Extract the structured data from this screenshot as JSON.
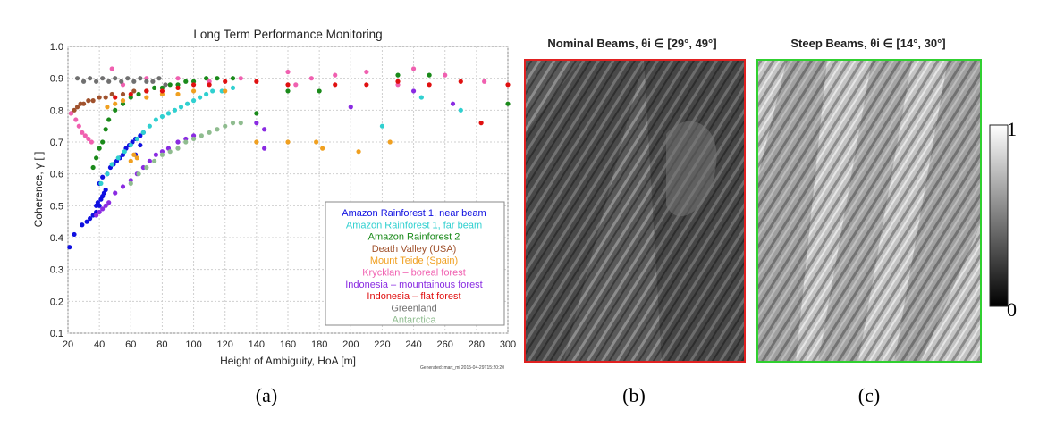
{
  "chart_data": [
    {
      "type": "scatter",
      "title": "Long Term Performance Monitoring",
      "xlabel": "Height of Ambiguity, HoA [m]",
      "ylabel": "Coherence, γ [ ]",
      "xlim": [
        20,
        300
      ],
      "ylim": [
        0.1,
        1.0
      ],
      "xticks": [
        20,
        40,
        60,
        80,
        100,
        120,
        140,
        160,
        180,
        200,
        220,
        240,
        260,
        280,
        300
      ],
      "yticks": [
        0.1,
        0.2,
        0.3,
        0.4,
        0.5,
        0.6,
        0.7,
        0.8,
        0.9,
        1.0
      ],
      "grid": true,
      "legend_position": "bottom-right",
      "footnote": "Generated: mart_mi 2015-04-29T15:20:20",
      "series": [
        {
          "name": "Amazon Rainforest 1, near beam",
          "color": "#1010e0",
          "points": [
            [
              21,
              0.37
            ],
            [
              24,
              0.41
            ],
            [
              29,
              0.44
            ],
            [
              32,
              0.45
            ],
            [
              34,
              0.46
            ],
            [
              36,
              0.47
            ],
            [
              38,
              0.48
            ],
            [
              38,
              0.5
            ],
            [
              39,
              0.51
            ],
            [
              40,
              0.5
            ],
            [
              41,
              0.52
            ],
            [
              42,
              0.53
            ],
            [
              43,
              0.54
            ],
            [
              44,
              0.55
            ],
            [
              40,
              0.57
            ],
            [
              42,
              0.59
            ],
            [
              45,
              0.6
            ],
            [
              47,
              0.62
            ],
            [
              49,
              0.63
            ],
            [
              51,
              0.64
            ],
            [
              53,
              0.65
            ],
            [
              55,
              0.66
            ],
            [
              57,
              0.68
            ],
            [
              59,
              0.69
            ],
            [
              61,
              0.7
            ],
            [
              63,
              0.71
            ],
            [
              66,
              0.72
            ],
            [
              68,
              0.73
            ],
            [
              63,
              0.66
            ],
            [
              66,
              0.69
            ]
          ]
        },
        {
          "name": "Amazon Rainforest 1, far beam",
          "color": "#30d0d0",
          "points": [
            [
              41,
              0.57
            ],
            [
              45,
              0.6
            ],
            [
              48,
              0.63
            ],
            [
              52,
              0.65
            ],
            [
              56,
              0.67
            ],
            [
              60,
              0.69
            ],
            [
              64,
              0.71
            ],
            [
              68,
              0.73
            ],
            [
              72,
              0.75
            ],
            [
              76,
              0.77
            ],
            [
              80,
              0.78
            ],
            [
              84,
              0.79
            ],
            [
              88,
              0.8
            ],
            [
              92,
              0.81
            ],
            [
              96,
              0.82
            ],
            [
              100,
              0.83
            ],
            [
              104,
              0.84
            ],
            [
              108,
              0.85
            ],
            [
              112,
              0.86
            ],
            [
              118,
              0.86
            ],
            [
              125,
              0.87
            ],
            [
              220,
              0.75
            ],
            [
              245,
              0.84
            ],
            [
              270,
              0.8
            ]
          ]
        },
        {
          "name": "Amazon Rainforest 2",
          "color": "#1a8a1a",
          "points": [
            [
              36,
              0.62
            ],
            [
              38,
              0.65
            ],
            [
              40,
              0.68
            ],
            [
              42,
              0.7
            ],
            [
              44,
              0.74
            ],
            [
              46,
              0.77
            ],
            [
              50,
              0.8
            ],
            [
              55,
              0.82
            ],
            [
              60,
              0.84
            ],
            [
              65,
              0.85
            ],
            [
              70,
              0.86
            ],
            [
              75,
              0.87
            ],
            [
              80,
              0.87
            ],
            [
              85,
              0.88
            ],
            [
              90,
              0.88
            ],
            [
              95,
              0.89
            ],
            [
              100,
              0.89
            ],
            [
              108,
              0.9
            ],
            [
              115,
              0.9
            ],
            [
              125,
              0.9
            ],
            [
              140,
              0.79
            ],
            [
              160,
              0.86
            ],
            [
              180,
              0.86
            ],
            [
              230,
              0.91
            ],
            [
              250,
              0.91
            ],
            [
              300,
              0.82
            ]
          ]
        },
        {
          "name": "Death Valley (USA)",
          "color": "#a0522d",
          "points": [
            [
              22,
              0.79
            ],
            [
              24,
              0.8
            ],
            [
              26,
              0.81
            ],
            [
              28,
              0.82
            ],
            [
              30,
              0.82
            ],
            [
              33,
              0.83
            ],
            [
              36,
              0.83
            ],
            [
              40,
              0.84
            ],
            [
              44,
              0.84
            ],
            [
              48,
              0.85
            ],
            [
              55,
              0.85
            ],
            [
              62,
              0.86
            ],
            [
              70,
              0.86
            ]
          ]
        },
        {
          "name": "Mount Teide (Spain)",
          "color": "#f0a020",
          "points": [
            [
              45,
              0.81
            ],
            [
              50,
              0.82
            ],
            [
              55,
              0.83
            ],
            [
              60,
              0.64
            ],
            [
              62,
              0.66
            ],
            [
              64,
              0.65
            ],
            [
              70,
              0.84
            ],
            [
              80,
              0.85
            ],
            [
              90,
              0.85
            ],
            [
              100,
              0.86
            ],
            [
              120,
              0.86
            ],
            [
              140,
              0.7
            ],
            [
              160,
              0.7
            ],
            [
              178,
              0.7
            ],
            [
              182,
              0.68
            ],
            [
              205,
              0.67
            ],
            [
              225,
              0.7
            ]
          ]
        },
        {
          "name": "Krycklan – boreal forest",
          "color": "#f060b0",
          "points": [
            [
              22,
              0.79
            ],
            [
              25,
              0.77
            ],
            [
              27,
              0.75
            ],
            [
              29,
              0.73
            ],
            [
              31,
              0.72
            ],
            [
              33,
              0.71
            ],
            [
              35,
              0.7
            ],
            [
              48,
              0.93
            ],
            [
              55,
              0.88
            ],
            [
              70,
              0.9
            ],
            [
              90,
              0.9
            ],
            [
              110,
              0.89
            ],
            [
              130,
              0.9
            ],
            [
              160,
              0.92
            ],
            [
              165,
              0.88
            ],
            [
              175,
              0.9
            ],
            [
              190,
              0.91
            ],
            [
              210,
              0.92
            ],
            [
              230,
              0.88
            ],
            [
              240,
              0.93
            ],
            [
              260,
              0.91
            ],
            [
              285,
              0.89
            ]
          ]
        },
        {
          "name": "Indonesia – mountainous forest",
          "color": "#8a2be2",
          "points": [
            [
              38,
              0.47
            ],
            [
              40,
              0.48
            ],
            [
              42,
              0.49
            ],
            [
              44,
              0.5
            ],
            [
              46,
              0.51
            ],
            [
              50,
              0.54
            ],
            [
              55,
              0.56
            ],
            [
              60,
              0.58
            ],
            [
              64,
              0.6
            ],
            [
              68,
              0.62
            ],
            [
              72,
              0.64
            ],
            [
              76,
              0.66
            ],
            [
              80,
              0.67
            ],
            [
              84,
              0.68
            ],
            [
              90,
              0.7
            ],
            [
              95,
              0.71
            ],
            [
              100,
              0.72
            ],
            [
              140,
              0.76
            ],
            [
              145,
              0.74
            ],
            [
              145,
              0.68
            ],
            [
              200,
              0.81
            ],
            [
              240,
              0.86
            ],
            [
              265,
              0.82
            ]
          ]
        },
        {
          "name": "Indonesia – flat forest",
          "color": "#e01010",
          "points": [
            [
              50,
              0.84
            ],
            [
              60,
              0.85
            ],
            [
              70,
              0.86
            ],
            [
              80,
              0.86
            ],
            [
              90,
              0.87
            ],
            [
              100,
              0.88
            ],
            [
              110,
              0.88
            ],
            [
              120,
              0.89
            ],
            [
              140,
              0.89
            ],
            [
              160,
              0.88
            ],
            [
              190,
              0.88
            ],
            [
              210,
              0.88
            ],
            [
              230,
              0.89
            ],
            [
              250,
              0.88
            ],
            [
              270,
              0.89
            ],
            [
              283,
              0.76
            ],
            [
              300,
              0.88
            ]
          ]
        },
        {
          "name": "Greenland",
          "color": "#707070",
          "points": [
            [
              26,
              0.9
            ],
            [
              30,
              0.89
            ],
            [
              34,
              0.9
            ],
            [
              38,
              0.89
            ],
            [
              42,
              0.9
            ],
            [
              46,
              0.89
            ],
            [
              50,
              0.9
            ],
            [
              54,
              0.89
            ],
            [
              58,
              0.9
            ],
            [
              62,
              0.89
            ],
            [
              66,
              0.9
            ],
            [
              70,
              0.89
            ],
            [
              74,
              0.89
            ],
            [
              78,
              0.9
            ],
            [
              82,
              0.88
            ]
          ]
        },
        {
          "name": "Antarctica",
          "color": "#8fbc8f",
          "points": [
            [
              60,
              0.57
            ],
            [
              65,
              0.6
            ],
            [
              70,
              0.62
            ],
            [
              75,
              0.64
            ],
            [
              80,
              0.66
            ],
            [
              85,
              0.67
            ],
            [
              90,
              0.68
            ],
            [
              95,
              0.7
            ],
            [
              100,
              0.71
            ],
            [
              105,
              0.72
            ],
            [
              110,
              0.73
            ],
            [
              115,
              0.74
            ],
            [
              120,
              0.75
            ],
            [
              125,
              0.76
            ],
            [
              130,
              0.76
            ]
          ]
        }
      ]
    },
    {
      "type": "heatmap",
      "title": "Nominal Beams, θi ∈ [29°, 49°]",
      "frame_color": "#e02020"
    },
    {
      "type": "heatmap",
      "title": "Steep Beams, θi ∈ [14°, 30°]",
      "frame_color": "#30d030",
      "colorbar": {
        "min_label": "0",
        "max_label": "1"
      }
    }
  ],
  "captions": [
    "(a)",
    "(b)",
    "(c)"
  ]
}
